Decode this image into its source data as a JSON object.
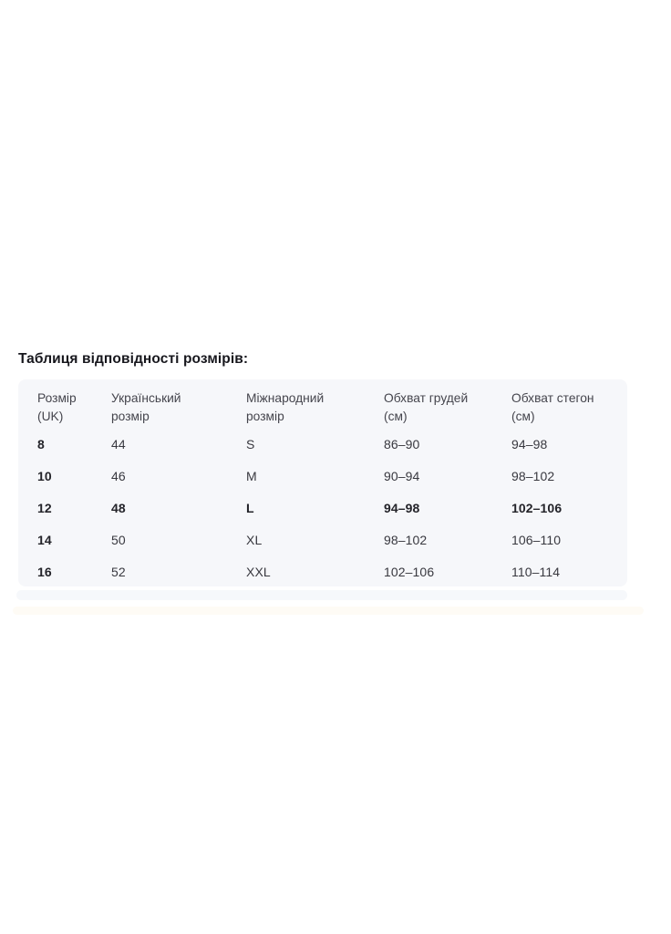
{
  "page": {
    "background": "#ffffff",
    "card_background": "#f6f7fa",
    "title_color": "#17171d",
    "header_text_color": "#45454d",
    "cell_text_color": "#38383f",
    "bold_text_color": "#232329"
  },
  "section_title": "Таблиця відповідності розмірів:",
  "size_table": {
    "columns": [
      "Розмір\n(UK)",
      "Український\nрозмір",
      "Міжнародний\nрозмір",
      "Обхват грудей\n(см)",
      "Обхват стегон\n(см)"
    ],
    "rows": [
      {
        "uk_size": "8",
        "ua_size": "44",
        "intl_size": "S",
        "chest": "86–90",
        "hips": "94–98",
        "highlighted": false
      },
      {
        "uk_size": "10",
        "ua_size": "46",
        "intl_size": "M",
        "chest": "90–94",
        "hips": "98–102",
        "highlighted": false
      },
      {
        "uk_size": "12",
        "ua_size": "48",
        "intl_size": "L",
        "chest": "94–98",
        "hips": "102–106",
        "highlighted": true
      },
      {
        "uk_size": "14",
        "ua_size": "50",
        "intl_size": "XL",
        "chest": "98–102",
        "hips": "106–110",
        "highlighted": false
      },
      {
        "uk_size": "16",
        "ua_size": "52",
        "intl_size": "XXL",
        "chest": "102–106",
        "hips": "110–114",
        "highlighted": false
      }
    ]
  }
}
